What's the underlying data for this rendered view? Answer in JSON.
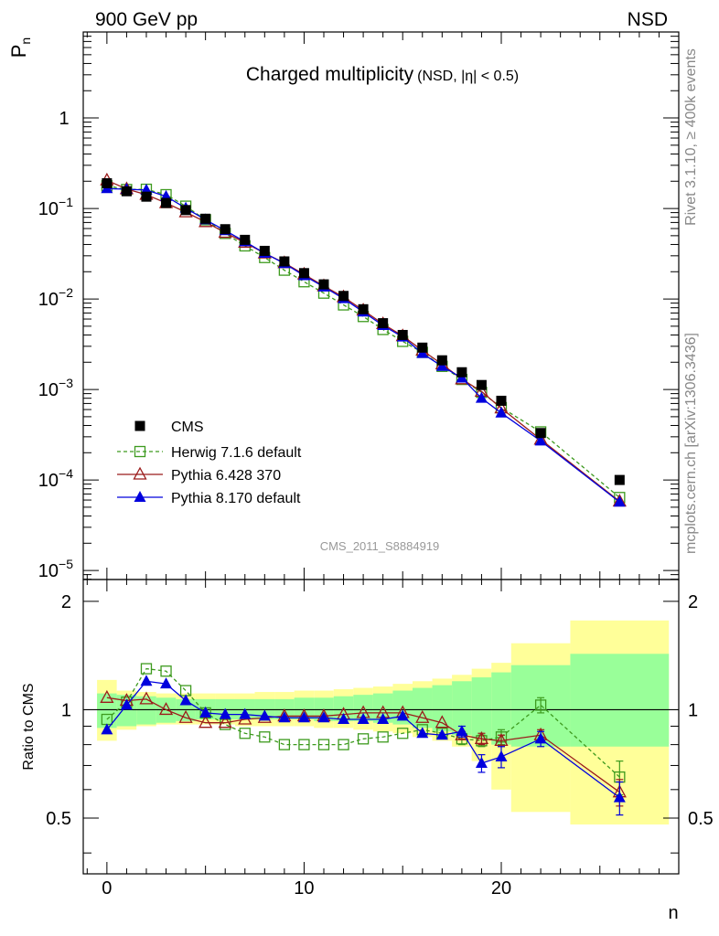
{
  "header": {
    "left": "900 GeV pp",
    "right": "NSD"
  },
  "side_labels": {
    "top": "Rivet 3.1.10, ≥ 400k events",
    "bottom": "mcplots.cern.ch [arXiv:1306.3436]"
  },
  "watermark": "CMS_2011_S8884919",
  "colors": {
    "cms": "#000000",
    "herwig": "#3d9a1e",
    "pythia6": "#9b1b1b",
    "pythia8": "#0000dd",
    "band_inner": "#99ff99",
    "band_outer": "#ffff99"
  },
  "chart_data": [
    {
      "type": "scatter",
      "yscale": "log",
      "title": "Charged multiplicity",
      "title_suffix": "(NSD, |η| < 0.5)",
      "ylabel": "P",
      "ylabel_sub": "n",
      "xlim": [
        -1.2,
        29
      ],
      "ylim_exp": [
        -5.1,
        0.95
      ],
      "yticks": [
        {
          "base": "10",
          "exp": "−5",
          "v": -5
        },
        {
          "base": "10",
          "exp": "−4",
          "v": -4
        },
        {
          "base": "10",
          "exp": "−3",
          "v": -3
        },
        {
          "base": "10",
          "exp": "−2",
          "v": -2
        },
        {
          "base": "10",
          "exp": "−1",
          "v": -1
        },
        {
          "base": "1",
          "exp": "",
          "v": 0
        }
      ],
      "legend_position": "lower-left",
      "x": [
        0,
        1,
        2,
        3,
        4,
        5,
        6,
        7,
        8,
        9,
        10,
        11,
        12,
        13,
        14,
        15,
        16,
        17,
        18,
        19,
        20,
        22,
        26
      ],
      "series": [
        {
          "name": "CMS",
          "values": [
            0.19,
            0.155,
            0.135,
            0.115,
            0.096,
            0.077,
            0.059,
            0.045,
            0.034,
            0.026,
            0.0193,
            0.0145,
            0.0108,
            0.0077,
            0.0054,
            0.004,
            0.0029,
            0.0021,
            0.00155,
            0.00112,
            0.00075,
            0.00033,
            0.0001
          ]
        },
        {
          "name": "Herwig 7.1.6 default",
          "values": [
            0.178,
            0.162,
            0.163,
            0.142,
            0.106,
            0.075,
            0.053,
            0.0386,
            0.0287,
            0.0208,
            0.0155,
            0.0116,
            0.0086,
            0.0064,
            0.0046,
            0.0034,
            0.00257,
            0.0018,
            0.00129,
            0.00093,
            0.00063,
            0.00034,
            6.4e-05
          ]
        },
        {
          "name": "Pythia 6.428 370",
          "values": [
            0.205,
            0.164,
            0.142,
            0.115,
            0.091,
            0.071,
            0.054,
            0.042,
            0.032,
            0.025,
            0.0187,
            0.0139,
            0.0105,
            0.0075,
            0.0053,
            0.0039,
            0.0027,
            0.0019,
            0.0013,
            0.00095,
            0.00062,
            0.00028,
            5.8e-05
          ]
        },
        {
          "name": "Pythia 8.170 default",
          "values": [
            0.166,
            0.163,
            0.16,
            0.136,
            0.101,
            0.075,
            0.057,
            0.043,
            0.032,
            0.0247,
            0.0181,
            0.0136,
            0.0101,
            0.0072,
            0.0051,
            0.0038,
            0.0025,
            0.0018,
            0.00134,
            0.0008,
            0.00055,
            0.00027,
            5.7e-05
          ]
        }
      ]
    },
    {
      "type": "scatter",
      "ylabel": "Ratio to CMS",
      "xlabel": "n",
      "xlim": [
        -1.2,
        29
      ],
      "ylim": [
        0.35,
        2.3
      ],
      "xticks": [
        0,
        10,
        20
      ],
      "yticks": [
        0.5,
        1,
        2
      ],
      "x": [
        0,
        1,
        2,
        3,
        4,
        5,
        6,
        7,
        8,
        9,
        10,
        11,
        12,
        13,
        14,
        15,
        16,
        17,
        18,
        19,
        20,
        22,
        26
      ],
      "band_bins": [
        [
          -0.5,
          0.5
        ],
        [
          0.5,
          1.5
        ],
        [
          1.5,
          2.5
        ],
        [
          2.5,
          3.5
        ],
        [
          3.5,
          4.5
        ],
        [
          4.5,
          5.5
        ],
        [
          5.5,
          6.5
        ],
        [
          6.5,
          7.5
        ],
        [
          7.5,
          8.5
        ],
        [
          8.5,
          9.5
        ],
        [
          9.5,
          10.5
        ],
        [
          10.5,
          11.5
        ],
        [
          11.5,
          12.5
        ],
        [
          12.5,
          13.5
        ],
        [
          13.5,
          14.5
        ],
        [
          14.5,
          15.5
        ],
        [
          15.5,
          16.5
        ],
        [
          16.5,
          17.5
        ],
        [
          17.5,
          18.5
        ],
        [
          18.5,
          19.5
        ],
        [
          19.5,
          20.5
        ],
        [
          20.5,
          23.5
        ],
        [
          23.5,
          28.5
        ]
      ],
      "band_inner": [
        [
          0.89,
          1.11
        ],
        [
          0.9,
          1.1
        ],
        [
          0.91,
          1.09
        ],
        [
          0.92,
          1.08
        ],
        [
          0.93,
          1.07
        ],
        [
          0.94,
          1.07
        ],
        [
          0.94,
          1.07
        ],
        [
          0.94,
          1.07
        ],
        [
          0.94,
          1.07
        ],
        [
          0.94,
          1.07
        ],
        [
          0.94,
          1.08
        ],
        [
          0.93,
          1.08
        ],
        [
          0.93,
          1.09
        ],
        [
          0.93,
          1.1
        ],
        [
          0.92,
          1.11
        ],
        [
          0.91,
          1.13
        ],
        [
          0.89,
          1.15
        ],
        [
          0.87,
          1.17
        ],
        [
          0.85,
          1.2
        ],
        [
          0.83,
          1.23
        ],
        [
          0.8,
          1.27
        ],
        [
          0.79,
          1.33
        ],
        [
          0.79,
          1.43
        ]
      ],
      "band_outer": [
        [
          0.82,
          1.21
        ],
        [
          0.88,
          1.13
        ],
        [
          0.9,
          1.12
        ],
        [
          0.91,
          1.11
        ],
        [
          0.91,
          1.11
        ],
        [
          0.91,
          1.11
        ],
        [
          0.91,
          1.11
        ],
        [
          0.9,
          1.11
        ],
        [
          0.9,
          1.12
        ],
        [
          0.9,
          1.12
        ],
        [
          0.9,
          1.13
        ],
        [
          0.89,
          1.13
        ],
        [
          0.89,
          1.14
        ],
        [
          0.88,
          1.15
        ],
        [
          0.87,
          1.16
        ],
        [
          0.86,
          1.18
        ],
        [
          0.84,
          1.2
        ],
        [
          0.82,
          1.22
        ],
        [
          0.79,
          1.25
        ],
        [
          0.72,
          1.3
        ],
        [
          0.6,
          1.35
        ],
        [
          0.52,
          1.53
        ],
        [
          0.48,
          1.77
        ]
      ],
      "ratios": [
        {
          "name": "Herwig 7.1.6 default",
          "values": [
            0.94,
            1.05,
            1.3,
            1.28,
            1.13,
            0.98,
            0.91,
            0.86,
            0.84,
            0.8,
            0.8,
            0.8,
            0.8,
            0.83,
            0.84,
            0.86,
            0.88,
            0.86,
            0.83,
            0.82,
            0.84,
            1.03,
            0.65
          ],
          "errors": [
            0,
            0,
            0,
            0,
            0,
            0,
            0,
            0,
            0,
            0,
            0,
            0,
            0,
            0,
            0,
            0,
            0,
            0,
            0.03,
            0.03,
            0.04,
            0.05,
            0.07
          ]
        },
        {
          "name": "Pythia 6.428 370",
          "values": [
            1.08,
            1.06,
            1.07,
            1.0,
            0.95,
            0.92,
            0.92,
            0.94,
            0.95,
            0.96,
            0.96,
            0.96,
            0.97,
            0.98,
            0.98,
            0.98,
            0.95,
            0.92,
            0.85,
            0.83,
            0.82,
            0.85,
            0.59
          ],
          "errors": [
            0,
            0,
            0,
            0,
            0,
            0,
            0,
            0,
            0,
            0,
            0,
            0,
            0,
            0,
            0,
            0,
            0,
            0,
            0.02,
            0.03,
            0.03,
            0.03,
            0.05
          ]
        },
        {
          "name": "Pythia 8.170 default",
          "values": [
            0.88,
            1.03,
            1.2,
            1.18,
            1.06,
            0.98,
            0.97,
            0.97,
            0.96,
            0.95,
            0.95,
            0.95,
            0.94,
            0.94,
            0.94,
            0.96,
            0.86,
            0.85,
            0.87,
            0.71,
            0.74,
            0.83,
            0.57
          ],
          "errors": [
            0,
            0,
            0,
            0,
            0,
            0,
            0,
            0,
            0,
            0,
            0,
            0,
            0,
            0,
            0,
            0,
            0,
            0,
            0.03,
            0.04,
            0.05,
            0.04,
            0.06
          ]
        }
      ]
    }
  ]
}
